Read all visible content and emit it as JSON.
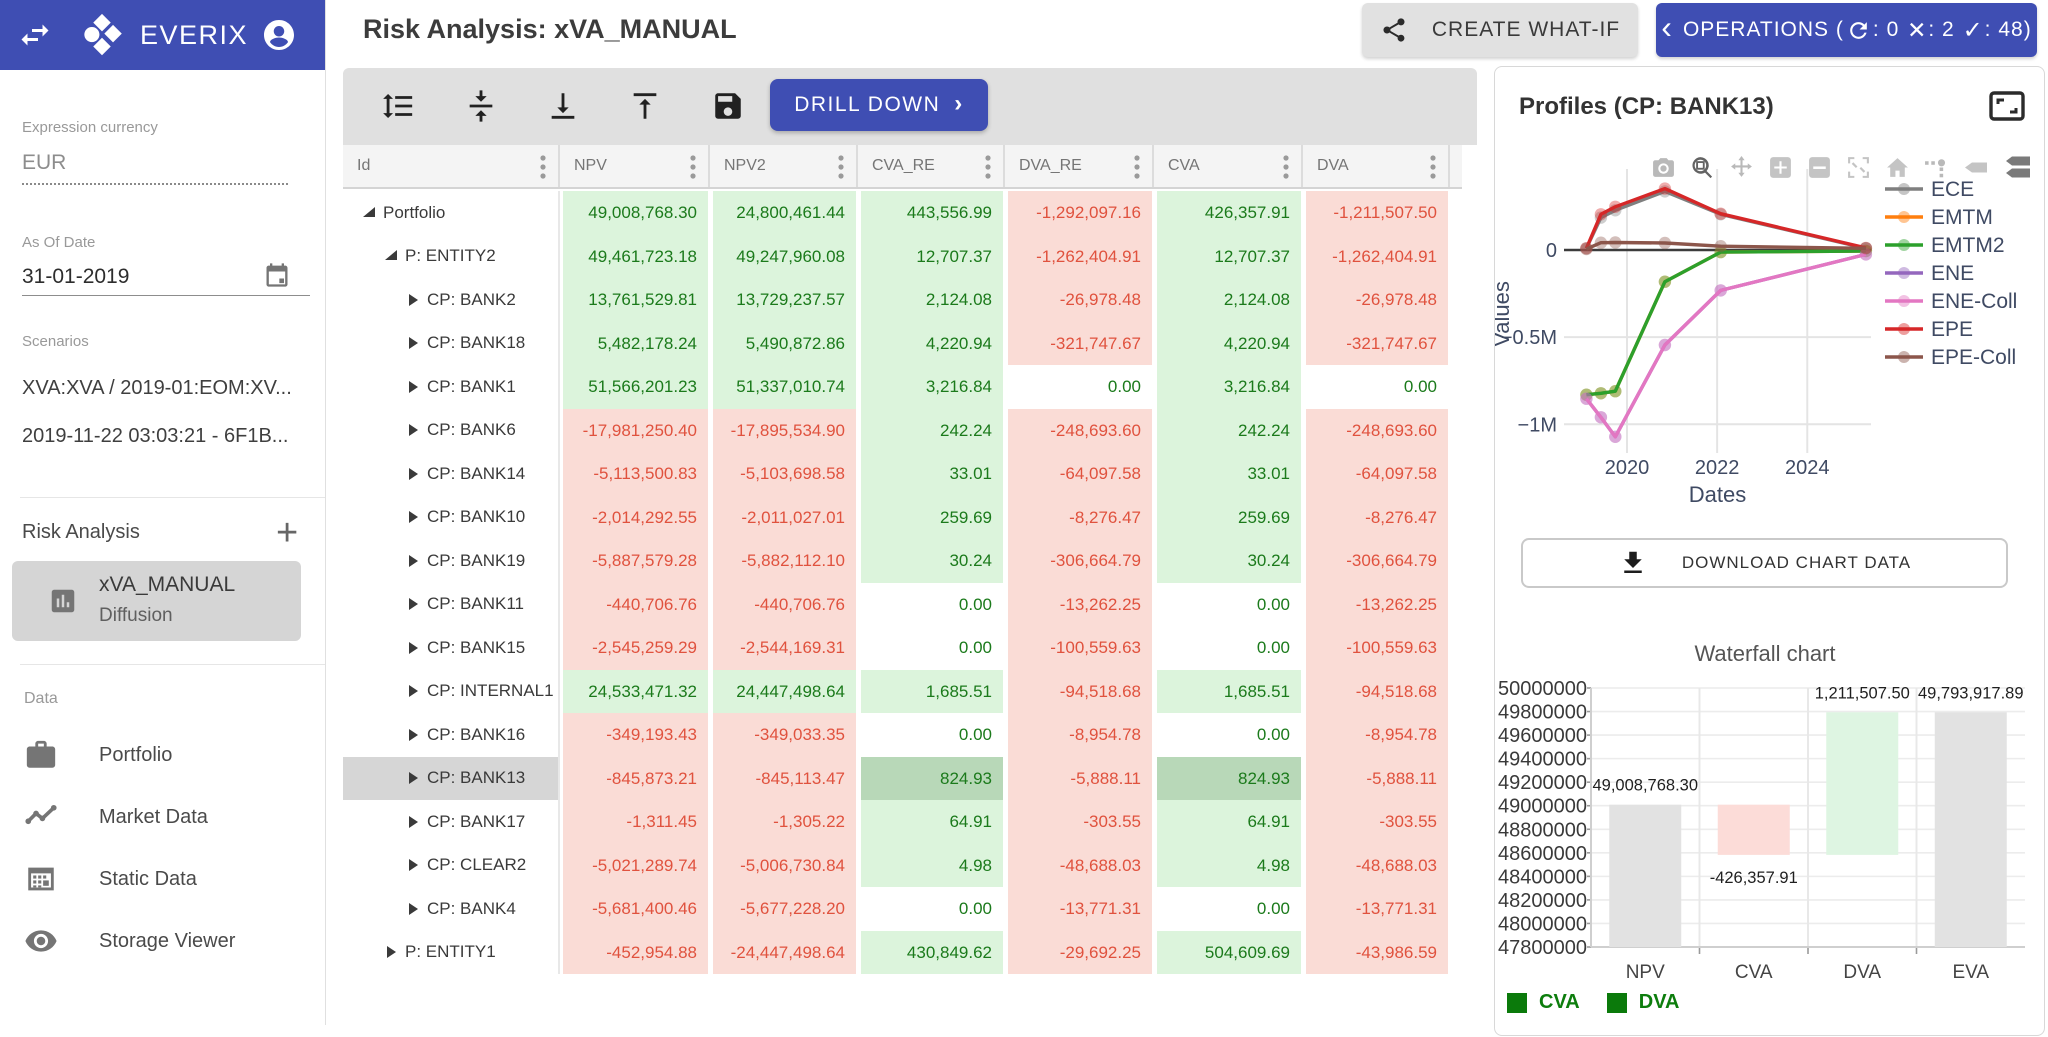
{
  "app": {
    "brand": "EVERIX",
    "accent_color": "#3f4eb3"
  },
  "sidebar": {
    "expression_currency_label": "Expression currency",
    "expression_currency_value": "EUR",
    "as_of_date_label": "As Of Date",
    "as_of_date_value": "31-01-2019",
    "scenarios_label": "Scenarios",
    "scenarios": [
      "XVA:XVA / 2019-01:EOM:XV...",
      "2019-11-22 03:03:21 - 6F1B..."
    ],
    "risk_analysis_label": "Risk Analysis",
    "add_icon": "+",
    "risk_analysis_item": {
      "title": "xVA_MANUAL",
      "subtitle": "Diffusion"
    },
    "data_label": "Data",
    "data_items": [
      {
        "label": "Portfolio",
        "icon": "briefcase-icon"
      },
      {
        "label": "Market Data",
        "icon": "trending-line-icon"
      },
      {
        "label": "Static Data",
        "icon": "building-grid-icon"
      },
      {
        "label": "Storage Viewer",
        "icon": "eye-icon"
      }
    ]
  },
  "header": {
    "title": "Risk Analysis: xVA_MANUAL",
    "create_whatif_label": "CREATE WHAT-IF",
    "operations": {
      "chevron": "‹",
      "label": "OPERATIONS (",
      "refresh_icon": "⟳",
      "refresh_count": ": 0 ",
      "cross_icon": "✕",
      "cross_count": ": 2 ",
      "check_icon": "✓",
      "check_count": ": 48)"
    }
  },
  "toolbar": {
    "drill_down_label": "DRILL DOWN",
    "drill_down_chevron": "›",
    "icons": [
      "row-height-icon",
      "vertical-align-center-icon",
      "vertical-align-bottom-icon",
      "vertical-align-top-icon",
      "save-icon"
    ]
  },
  "table": {
    "columns": [
      "Id",
      "NPV",
      "NPV2",
      "CVA_RE",
      "DVA_RE",
      "CVA",
      "DVA"
    ],
    "kebab_icon": "⋮",
    "rows": [
      {
        "id": "Portfolio",
        "level": 0,
        "expanded": true,
        "selected": false,
        "values": [
          "49,008,768.30",
          "24,800,461.44",
          "443,556.99",
          "-1,292,097.16",
          "426,357.91",
          "-1,211,507.50"
        ]
      },
      {
        "id": "P: ENTITY2",
        "level": 1,
        "expanded": true,
        "selected": false,
        "values": [
          "49,461,723.18",
          "49,247,960.08",
          "12,707.37",
          "-1,262,404.91",
          "12,707.37",
          "-1,262,404.91"
        ]
      },
      {
        "id": "CP: BANK2",
        "level": 2,
        "expanded": false,
        "selected": false,
        "values": [
          "13,761,529.81",
          "13,729,237.57",
          "2,124.08",
          "-26,978.48",
          "2,124.08",
          "-26,978.48"
        ]
      },
      {
        "id": "CP: BANK18",
        "level": 2,
        "expanded": false,
        "selected": false,
        "values": [
          "5,482,178.24",
          "5,490,872.86",
          "4,220.94",
          "-321,747.67",
          "4,220.94",
          "-321,747.67"
        ]
      },
      {
        "id": "CP: BANK1",
        "level": 2,
        "expanded": false,
        "selected": false,
        "values": [
          "51,566,201.23",
          "51,337,010.74",
          "3,216.84",
          "0.00",
          "3,216.84",
          "0.00"
        ]
      },
      {
        "id": "CP: BANK6",
        "level": 2,
        "expanded": false,
        "selected": false,
        "values": [
          "-17,981,250.40",
          "-17,895,534.90",
          "242.24",
          "-248,693.60",
          "242.24",
          "-248,693.60"
        ]
      },
      {
        "id": "CP: BANK14",
        "level": 2,
        "expanded": false,
        "selected": false,
        "values": [
          "-5,113,500.83",
          "-5,103,698.58",
          "33.01",
          "-64,097.58",
          "33.01",
          "-64,097.58"
        ]
      },
      {
        "id": "CP: BANK10",
        "level": 2,
        "expanded": false,
        "selected": false,
        "values": [
          "-2,014,292.55",
          "-2,011,027.01",
          "259.69",
          "-8,276.47",
          "259.69",
          "-8,276.47"
        ]
      },
      {
        "id": "CP: BANK19",
        "level": 2,
        "expanded": false,
        "selected": false,
        "values": [
          "-5,887,579.28",
          "-5,882,112.10",
          "30.24",
          "-306,664.79",
          "30.24",
          "-306,664.79"
        ]
      },
      {
        "id": "CP: BANK11",
        "level": 2,
        "expanded": false,
        "selected": false,
        "values": [
          "-440,706.76",
          "-440,706.76",
          "0.00",
          "-13,262.25",
          "0.00",
          "-13,262.25"
        ]
      },
      {
        "id": "CP: BANK15",
        "level": 2,
        "expanded": false,
        "selected": false,
        "values": [
          "-2,545,259.29",
          "-2,544,169.31",
          "0.00",
          "-100,559.63",
          "0.00",
          "-100,559.63"
        ]
      },
      {
        "id": "CP: INTERNAL1",
        "level": 2,
        "expanded": false,
        "selected": false,
        "values": [
          "24,533,471.32",
          "24,447,498.64",
          "1,685.51",
          "-94,518.68",
          "1,685.51",
          "-94,518.68"
        ]
      },
      {
        "id": "CP: BANK16",
        "level": 2,
        "expanded": false,
        "selected": false,
        "values": [
          "-349,193.43",
          "-349,033.35",
          "0.00",
          "-8,954.78",
          "0.00",
          "-8,954.78"
        ]
      },
      {
        "id": "CP: BANK13",
        "level": 2,
        "expanded": false,
        "selected": true,
        "highlight_cols": [
          2,
          4
        ],
        "values": [
          "-845,873.21",
          "-845,113.47",
          "824.93",
          "-5,888.11",
          "824.93",
          "-5,888.11"
        ]
      },
      {
        "id": "CP: BANK17",
        "level": 2,
        "expanded": false,
        "selected": false,
        "values": [
          "-1,311.45",
          "-1,305.22",
          "64.91",
          "-303.55",
          "64.91",
          "-303.55"
        ]
      },
      {
        "id": "CP: CLEAR2",
        "level": 2,
        "expanded": false,
        "selected": false,
        "values": [
          "-5,021,289.74",
          "-5,006,730.84",
          "4.98",
          "-48,688.03",
          "4.98",
          "-48,688.03"
        ]
      },
      {
        "id": "CP: BANK4",
        "level": 2,
        "expanded": false,
        "selected": false,
        "values": [
          "-5,681,400.46",
          "-5,677,228.20",
          "0.00",
          "-13,771.31",
          "0.00",
          "-13,771.31"
        ]
      },
      {
        "id": "P: ENTITY1",
        "level": 1,
        "expanded": false,
        "selected": false,
        "values": [
          "-452,954.88",
          "-24,447,498.64",
          "430,849.62",
          "-29,692.25",
          "504,609.69",
          "-43,986.59"
        ]
      }
    ]
  },
  "profiles_panel": {
    "title": "Profiles (CP: BANK13)",
    "download_label": "DOWNLOAD CHART DATA"
  },
  "chart_data": [
    {
      "type": "line",
      "title": "Profiles (CP: BANK13)",
      "xlabel": "Dates",
      "ylabel": "Values",
      "unit": "M",
      "x": [
        2019.1,
        2019.42,
        2019.74,
        2020.84,
        2022.08,
        2025.3
      ],
      "series": [
        {
          "name": "ECE",
          "color": "#7f7f7f",
          "values": [
            0.01,
            0.186,
            0.228,
            0.336,
            0.205,
            0.01
          ]
        },
        {
          "name": "EMTM",
          "color": "#ff7f0e",
          "values": [
            -0.83,
            -0.822,
            -0.81,
            -0.182,
            -0.012,
            -0.006
          ]
        },
        {
          "name": "EMTM2",
          "color": "#2ca02c",
          "values": [
            -0.83,
            -0.822,
            -0.81,
            -0.182,
            -0.012,
            -0.006
          ]
        },
        {
          "name": "ENE",
          "color": "#9467bd",
          "values": [
            -0.853,
            -0.96,
            -1.072,
            -0.545,
            -0.232,
            -0.025
          ]
        },
        {
          "name": "ENE-Coll",
          "color": "#e377c2",
          "values": [
            -0.853,
            -0.96,
            -1.072,
            -0.545,
            -0.232,
            -0.025
          ]
        },
        {
          "name": "EPE",
          "color": "#d62728",
          "values": [
            0.01,
            0.205,
            0.248,
            0.352,
            0.208,
            0.012
          ]
        },
        {
          "name": "EPE-Coll",
          "color": "#8c564b",
          "values": [
            0.005,
            0.042,
            0.043,
            0.04,
            0.022,
            0.01
          ]
        }
      ],
      "xticks": [
        {
          "v": 2020,
          "label": "2020"
        },
        {
          "v": 2022,
          "label": "2022"
        },
        {
          "v": 2024,
          "label": "2024"
        }
      ],
      "yticks": [
        {
          "v": 0,
          "label": "0"
        },
        {
          "v": -0.5,
          "label": "−0.5M"
        },
        {
          "v": -1,
          "label": "−1M"
        }
      ],
      "legend_position": "right",
      "grid": true
    },
    {
      "type": "waterfall",
      "title": "Waterfall chart",
      "categories": [
        "NPV",
        "CVA",
        "DVA",
        "EVA"
      ],
      "bars": [
        {
          "name": "NPV",
          "kind": "total",
          "from": 47800000,
          "to": 49008768.3,
          "label": "49,008,768.30",
          "label_pos": "above"
        },
        {
          "name": "CVA",
          "kind": "decrease",
          "from": 48582410.39,
          "to": 49008768.3,
          "label": "-426,357.91",
          "label_pos": "below"
        },
        {
          "name": "DVA",
          "kind": "increase",
          "from": 48582410.39,
          "to": 49793917.89,
          "label": "1,211,507.50",
          "label_pos": "above"
        },
        {
          "name": "EVA",
          "kind": "total",
          "from": 47800000,
          "to": 49793917.89,
          "label": "49,793,917.89",
          "label_pos": "above"
        }
      ],
      "ylim": [
        47800000,
        50000000
      ],
      "ytick_step": 200000,
      "colors": {
        "total": "#e2e2e2",
        "increase": "#def5e2",
        "decrease": "#fcdcd8"
      },
      "legend": [
        {
          "label": "CVA",
          "color": "#0b7a0b"
        },
        {
          "label": "DVA",
          "color": "#0b7a0b"
        }
      ]
    }
  ]
}
